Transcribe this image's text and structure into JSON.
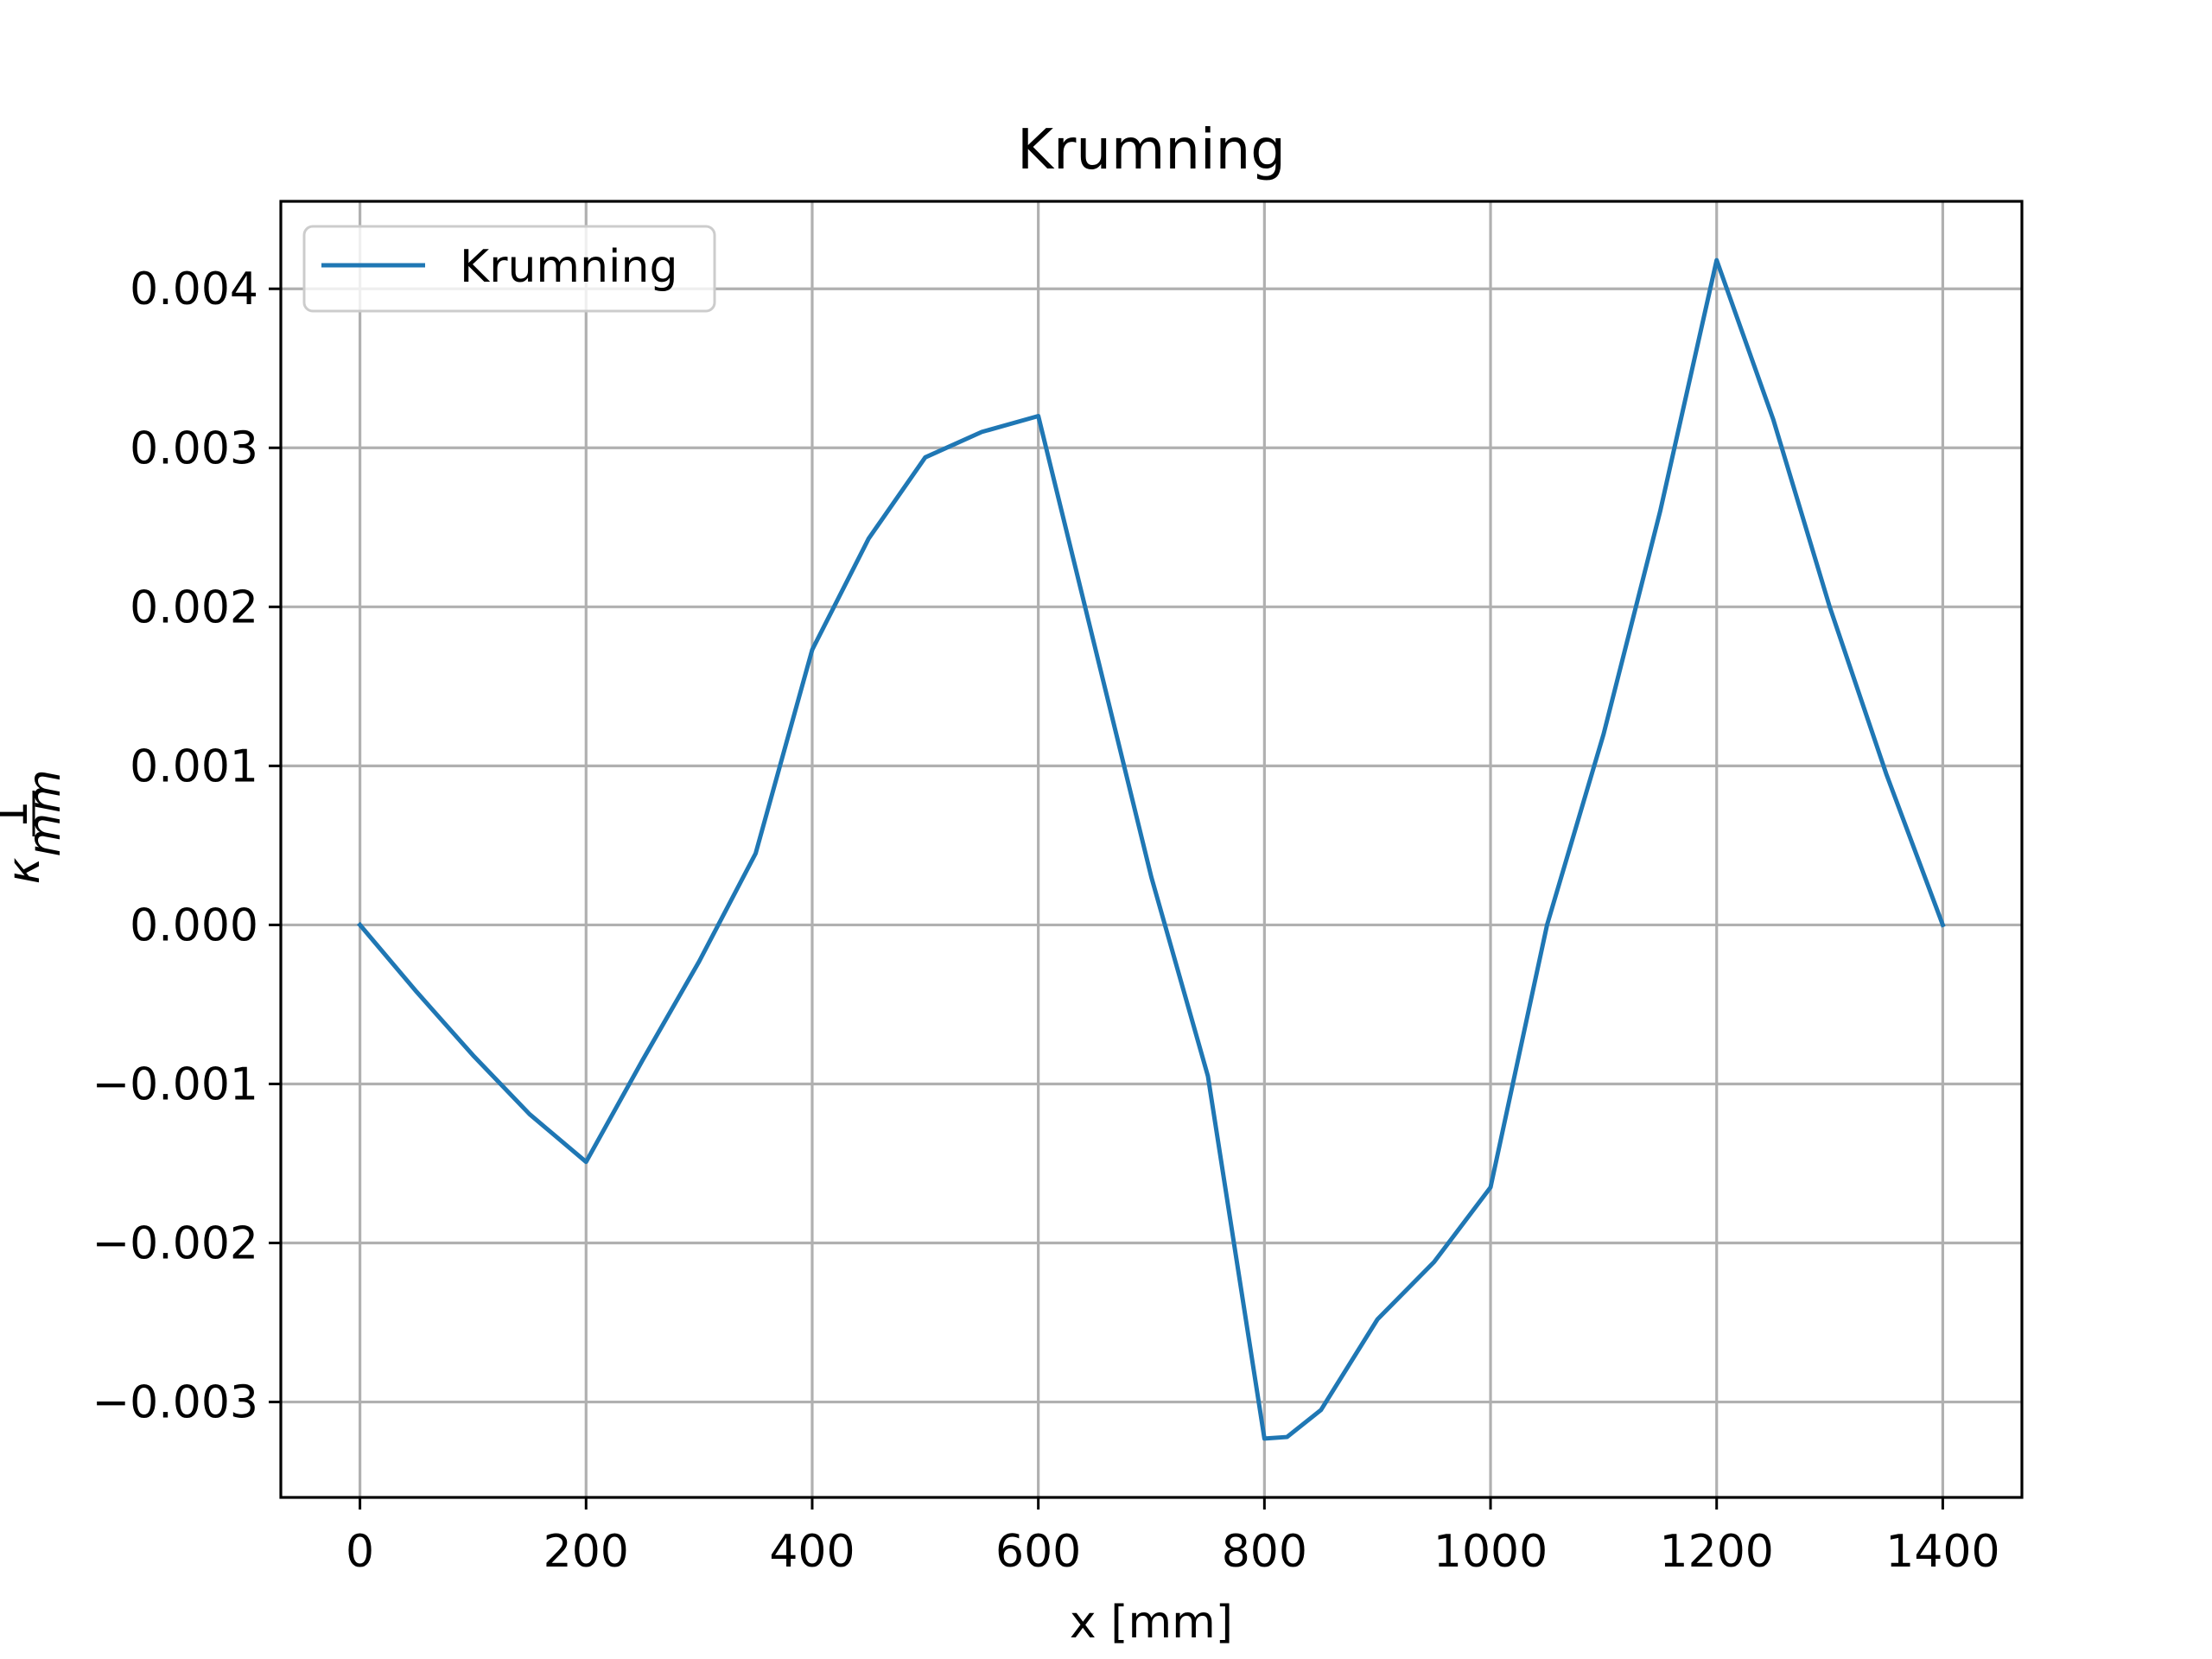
{
  "chart_data": {
    "type": "line",
    "title": "Krumning",
    "xlabel": "x [mm]",
    "ylabel": "κ [1/mm]",
    "ylabel_symbol": "κ",
    "ylabel_num": "1",
    "ylabel_den": "mm",
    "xlim": [
      -70,
      1470
    ],
    "ylim": [
      -0.0036,
      0.00455
    ],
    "grid": true,
    "legend_position": "upper-left",
    "x_ticks": [
      0,
      200,
      400,
      600,
      800,
      1000,
      1200,
      1400
    ],
    "x_tick_labels": [
      "0",
      "200",
      "400",
      "600",
      "800",
      "1000",
      "1200",
      "1400"
    ],
    "y_ticks": [
      -0.003,
      -0.002,
      -0.001,
      0.0,
      0.001,
      0.002,
      0.003,
      0.004
    ],
    "y_tick_labels": [
      "−0.003",
      "−0.002",
      "−0.001",
      "0.000",
      "0.001",
      "0.002",
      "0.003",
      "0.004"
    ],
    "series": [
      {
        "name": "Krumning",
        "color": "#1f77b4",
        "x": [
          0,
          50,
          100,
          150,
          200,
          250,
          300,
          350,
          400,
          450,
          500,
          550,
          600,
          650,
          700,
          750,
          800,
          820,
          850,
          900,
          950,
          1000,
          1050,
          1100,
          1150,
          1200,
          1250,
          1300,
          1350,
          1400
        ],
        "y": [
          0.0,
          -0.00042,
          -0.00082,
          -0.00119,
          -0.00149,
          -0.00085,
          -0.00023,
          0.00045,
          0.00173,
          0.00243,
          0.00294,
          0.0031,
          0.0032,
          0.00175,
          0.0003,
          -0.00095,
          -0.00323,
          -0.00322,
          -0.00305,
          -0.00248,
          -0.00212,
          -0.00165,
          0.0,
          0.0012,
          0.0026,
          0.00418,
          0.00318,
          0.002,
          0.00095,
          0.0
        ]
      }
    ]
  }
}
